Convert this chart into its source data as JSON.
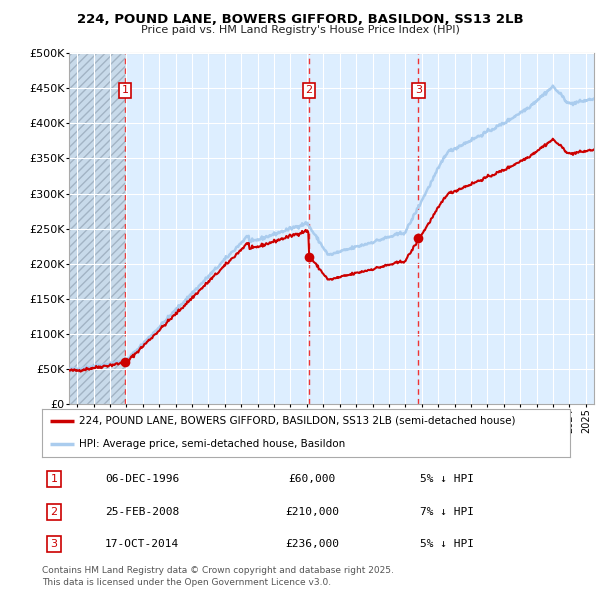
{
  "title_line1": "224, POUND LANE, BOWERS GIFFORD, BASILDON, SS13 2LB",
  "title_line2": "Price paid vs. HM Land Registry's House Price Index (HPI)",
  "transactions": [
    {
      "num": 1,
      "date": "06-DEC-1996",
      "date_x": 1996.92,
      "price": 60000,
      "pct": "5%",
      "dir": "↓"
    },
    {
      "num": 2,
      "date": "25-FEB-2008",
      "date_x": 2008.13,
      "price": 210000,
      "pct": "7%",
      "dir": "↓"
    },
    {
      "num": 3,
      "date": "17-OCT-2014",
      "date_x": 2014.79,
      "price": 236000,
      "pct": "5%",
      "dir": "↓"
    }
  ],
  "legend_line1": "224, POUND LANE, BOWERS GIFFORD, BASILDON, SS13 2LB (semi-detached house)",
  "legend_line2": "HPI: Average price, semi-detached house, Basildon",
  "footnote": "Contains HM Land Registry data © Crown copyright and database right 2025.\nThis data is licensed under the Open Government Licence v3.0.",
  "ylim": [
    0,
    500000
  ],
  "xlim": [
    1993.5,
    2025.5
  ],
  "yticks": [
    0,
    50000,
    100000,
    150000,
    200000,
    250000,
    300000,
    350000,
    400000,
    450000,
    500000
  ],
  "ytick_labels": [
    "£0",
    "£50K",
    "£100K",
    "£150K",
    "£200K",
    "£250K",
    "£300K",
    "£350K",
    "£400K",
    "£450K",
    "£500K"
  ],
  "plot_bg_color": "#ddeeff",
  "grid_color": "#ffffff",
  "line_color_red": "#cc0000",
  "line_color_blue": "#aaccee",
  "marker_color": "#cc0000",
  "vline_color": "#ee3333",
  "box_color": "#cc0000",
  "hatch_bg": "#c8daea",
  "hatch_edge": "#99aabb"
}
